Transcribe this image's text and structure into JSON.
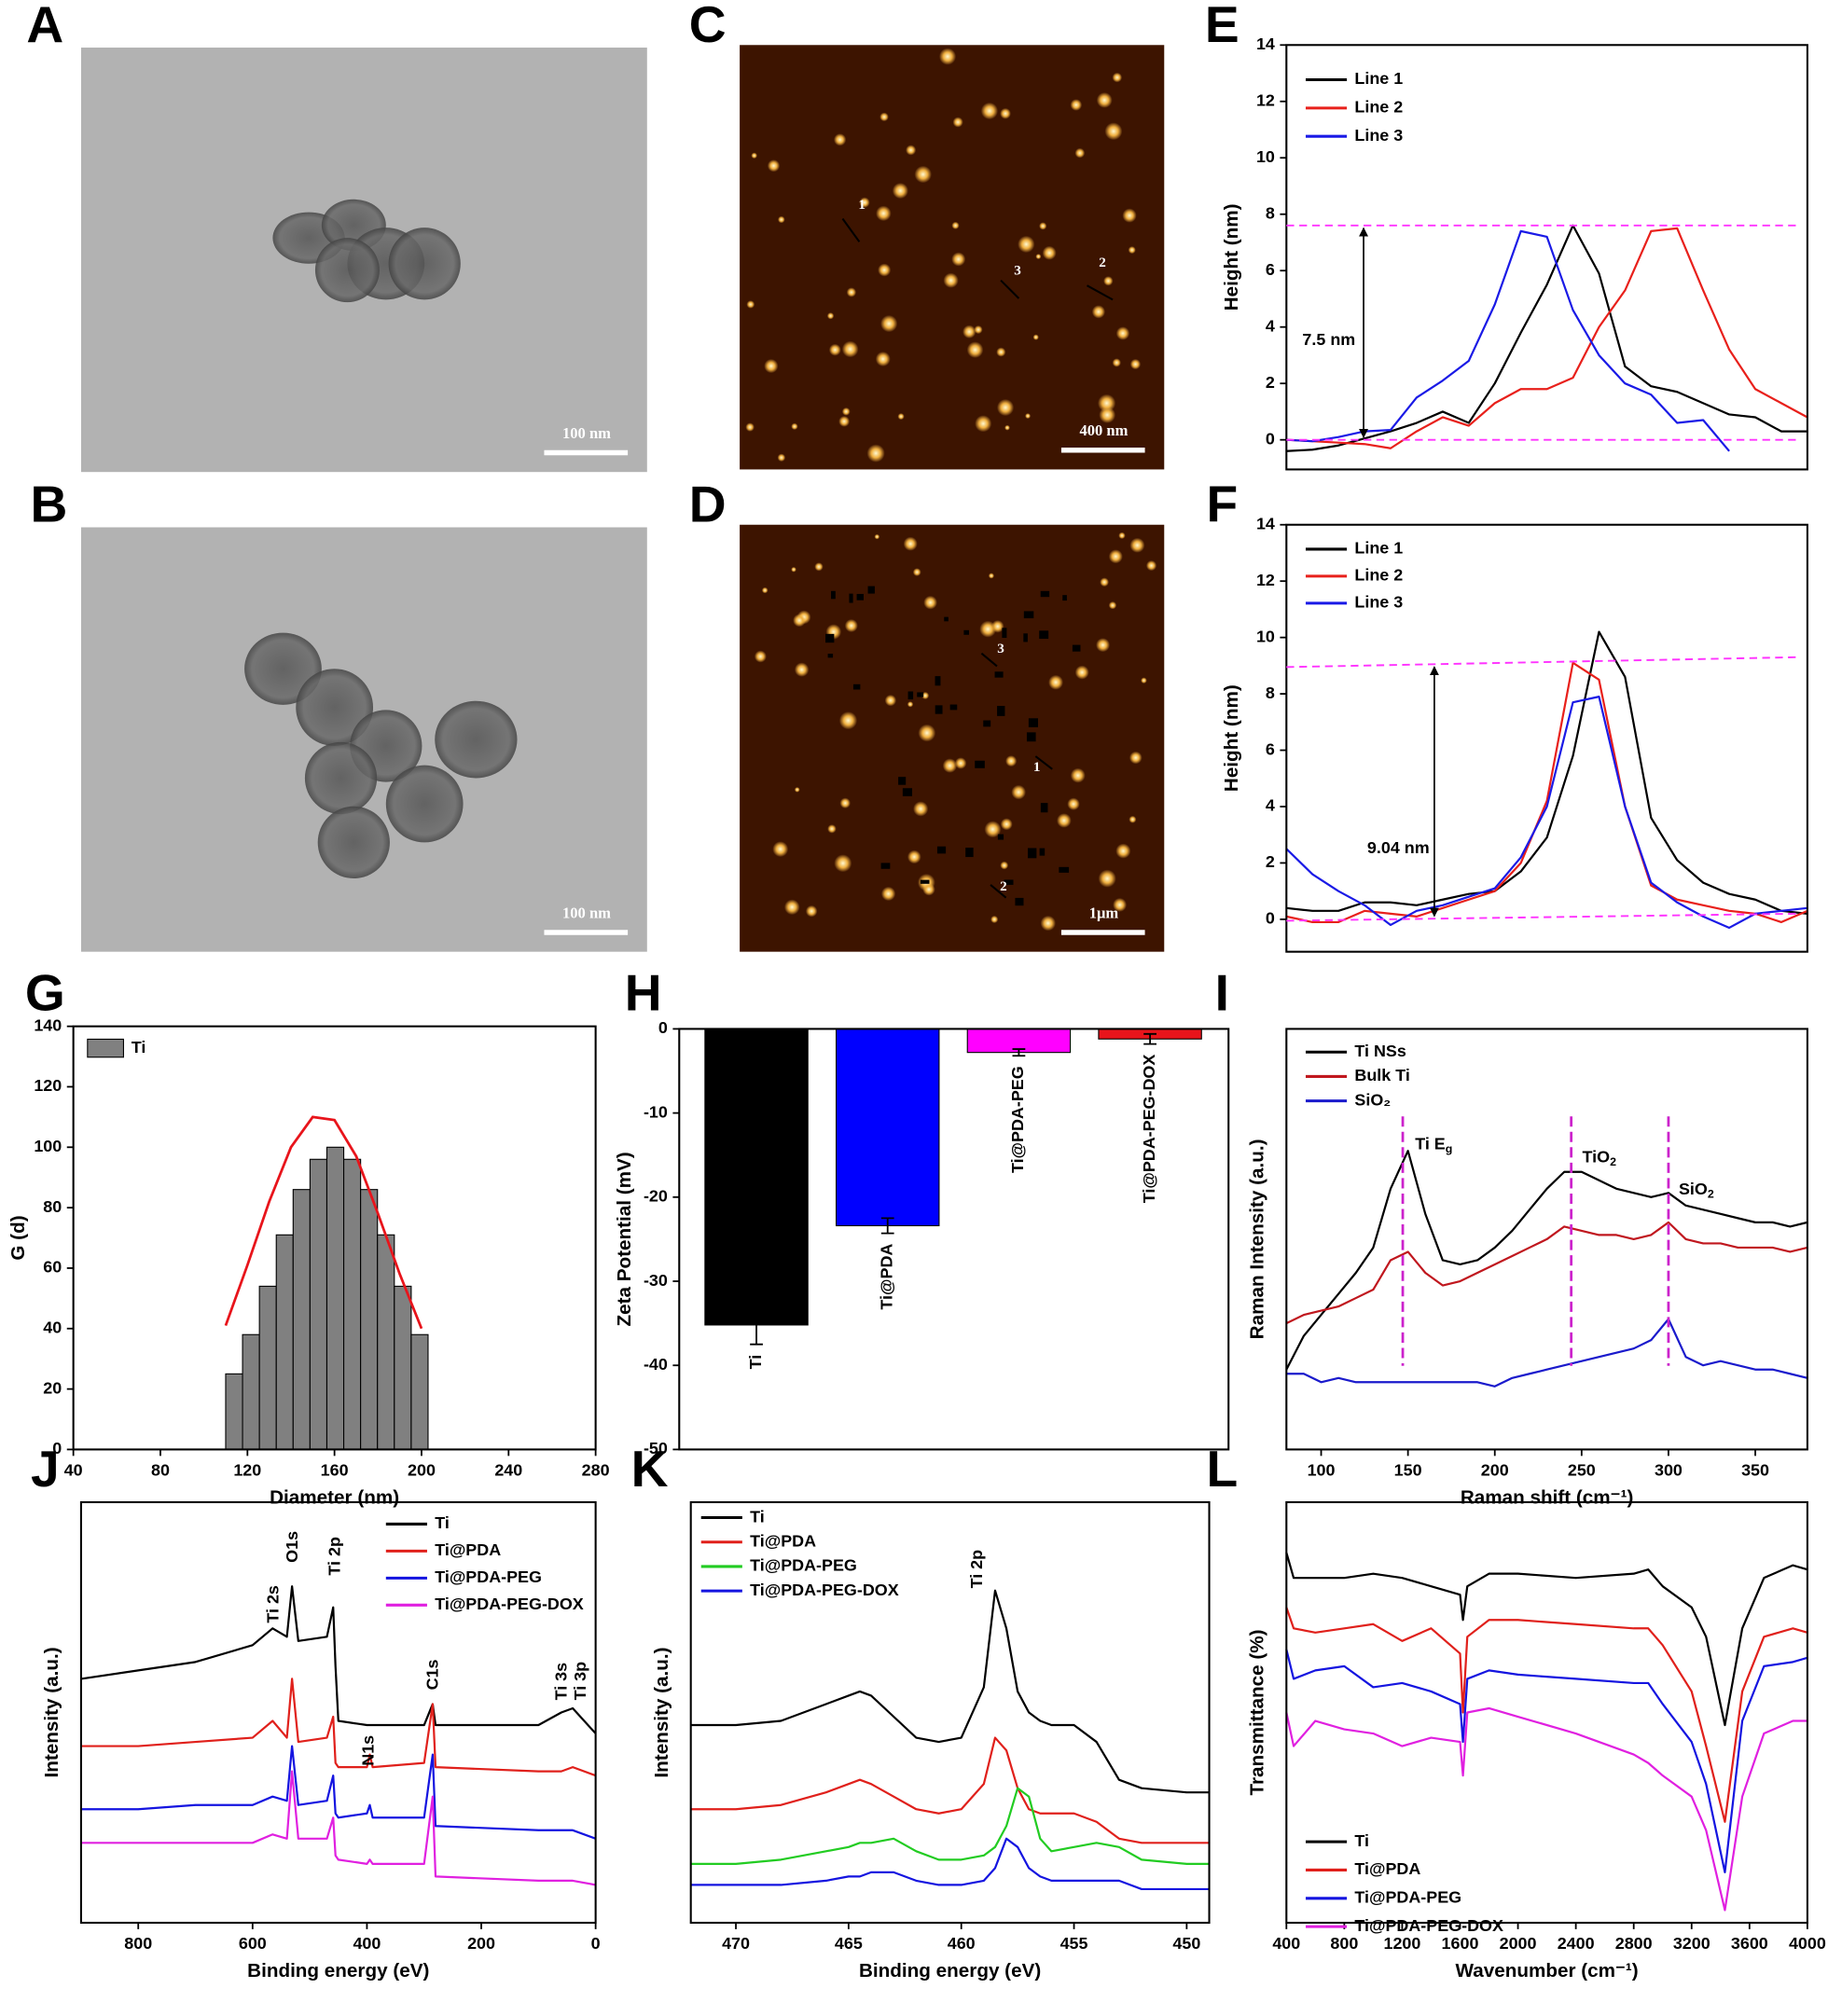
{
  "images": [
    {
      "panel": "A",
      "scale_bar": "100 nm"
    },
    {
      "panel": "B",
      "scale_bar": "100 nm"
    },
    {
      "panel": "C",
      "scale_bar": "400 nm",
      "markers": [
        "1",
        "3",
        "2"
      ]
    },
    {
      "panel": "D",
      "scale_bar": "1μm",
      "markers": [
        "3",
        "1",
        "2"
      ]
    }
  ],
  "chart_data": [
    {
      "panel": "E",
      "type": "line",
      "y_label": "Height (nm)",
      "xlim": [
        0,
        20
      ],
      "ylim": [
        -1.05,
        14
      ],
      "yticks": [
        0,
        2,
        4,
        6,
        8,
        10,
        12,
        14
      ],
      "x": [
        0,
        1,
        2,
        3,
        4,
        5,
        6,
        7,
        8,
        9,
        10,
        11,
        12,
        13,
        14,
        15,
        16,
        17,
        18,
        19,
        20
      ],
      "series": [
        {
          "name": "Line 1",
          "color": "#000000",
          "values": [
            -0.4,
            -0.35,
            -0.2,
            0.05,
            0.3,
            0.6,
            1.0,
            0.6,
            2.0,
            3.8,
            5.5,
            7.6,
            5.9,
            2.6,
            1.9,
            1.7,
            1.3,
            0.9,
            0.8,
            0.3,
            0.3
          ]
        },
        {
          "name": "Line 2",
          "color": "#e8201b",
          "values": [
            0,
            -0.05,
            -0.1,
            -0.15,
            -0.3,
            0.3,
            0.8,
            0.5,
            1.3,
            1.8,
            1.8,
            2.2,
            4.0,
            5.3,
            7.4,
            7.5,
            5.3,
            3.2,
            1.8,
            1.3,
            0.8
          ]
        },
        {
          "name": "Line 3",
          "color": "#1a1ae6",
          "values": [
            0,
            -0.05,
            0.1,
            0.3,
            0.35,
            1.5,
            2.1,
            2.8,
            4.8,
            7.4,
            7.2,
            4.6,
            3.0,
            2.0,
            1.6,
            0.6,
            0.7,
            -0.4,
            null,
            null,
            null
          ]
        }
      ],
      "ref_lines": [
        [
          7.6,
          7.6
        ],
        [
          0,
          0
        ]
      ],
      "ref_color": "#ff33ff",
      "annotations": [
        "7.5 nm"
      ]
    },
    {
      "panel": "F",
      "type": "line",
      "y_label": "Height (nm)",
      "xlim": [
        0,
        20
      ],
      "ylim": [
        -1.15,
        14
      ],
      "yticks": [
        0,
        2,
        4,
        6,
        8,
        10,
        12,
        14
      ],
      "x": [
        0,
        1,
        2,
        3,
        4,
        5,
        6,
        7,
        8,
        9,
        10,
        11,
        12,
        13,
        14,
        15,
        16,
        17,
        18,
        19,
        20
      ],
      "series": [
        {
          "name": "Line 1",
          "color": "#000000",
          "values": [
            0.4,
            0.3,
            0.3,
            0.6,
            0.6,
            0.5,
            0.7,
            0.9,
            1.0,
            1.7,
            2.9,
            5.8,
            10.2,
            8.6,
            3.6,
            2.1,
            1.3,
            0.9,
            0.7,
            0.3,
            0.2
          ]
        },
        {
          "name": "Line 2",
          "color": "#e8201b",
          "values": [
            0.1,
            -0.1,
            -0.1,
            0.3,
            0.2,
            0.1,
            0.4,
            0.7,
            1.0,
            2.0,
            4.2,
            9.1,
            8.5,
            4.0,
            1.2,
            0.7,
            0.5,
            0.3,
            0.2,
            -0.1,
            0.3
          ]
        },
        {
          "name": "Line 3",
          "color": "#1a1ae6",
          "values": [
            2.5,
            1.6,
            1.0,
            0.5,
            -0.2,
            0.3,
            0.5,
            0.8,
            1.1,
            2.2,
            4.0,
            7.7,
            7.9,
            4.0,
            1.3,
            0.6,
            0.1,
            -0.3,
            0.2,
            0.3,
            0.4
          ]
        }
      ],
      "ref_lines": [
        [
          8.95,
          9.3
        ],
        [
          -0.05,
          0.2
        ]
      ],
      "ref_color": "#ff33ff",
      "annotations": [
        "9.04 nm"
      ]
    },
    {
      "panel": "G",
      "type": "histogram",
      "x_label": "Diameter (nm)",
      "y_label": "G (d)",
      "xlim": [
        40,
        280
      ],
      "ylim": [
        0,
        140
      ],
      "xticks": [
        40,
        80,
        120,
        160,
        200,
        240,
        280
      ],
      "yticks": [
        0,
        20,
        40,
        60,
        80,
        100,
        120,
        140
      ],
      "bins": [
        110,
        117.75,
        125.5,
        133.25,
        141,
        148.75,
        156.5,
        164.25,
        172,
        179.75,
        187.5,
        195.25,
        203
      ],
      "series": [
        {
          "name": "Ti",
          "color": "#808080",
          "values": [
            25,
            38,
            54,
            71,
            86,
            96,
            100,
            96,
            86,
            71,
            54,
            38
          ]
        }
      ],
      "fit": {
        "color": "#e8141b",
        "x": [
          110,
          120,
          130,
          140,
          150,
          160,
          170,
          180,
          190,
          200
        ],
        "values": [
          41,
          61,
          82,
          100,
          110,
          109,
          97,
          78,
          58,
          40
        ]
      }
    },
    {
      "panel": "H",
      "type": "bar",
      "y_label": "Zeta Potential (mV)",
      "ylim": [
        -50,
        0
      ],
      "yticks": [
        0,
        -10,
        -20,
        -30,
        -40,
        -50
      ],
      "categories": [
        "Ti",
        "Ti@PDA",
        "Ti@PDA-PEG",
        "Ti@PDA-PEG-DOX"
      ],
      "values": [
        -35.2,
        -23.4,
        -2.8,
        -1.2
      ],
      "errors": [
        2.3,
        0.9,
        0.4,
        0.6
      ],
      "colors": [
        "#000000",
        "#0000ff",
        "#ff00ff",
        "#e8141b"
      ]
    },
    {
      "panel": "I",
      "type": "line",
      "x_label": "Raman shift (cm⁻¹)",
      "y_label": "Raman Intensity (a.u.)",
      "xlim": [
        80,
        380
      ],
      "ylim": [
        0,
        100
      ],
      "xticks": [
        100,
        150,
        200,
        250,
        300,
        350
      ],
      "x": [
        80,
        90,
        100,
        110,
        120,
        130,
        140,
        150,
        160,
        170,
        180,
        190,
        200,
        210,
        220,
        230,
        240,
        250,
        260,
        270,
        280,
        290,
        300,
        310,
        320,
        330,
        340,
        350,
        360,
        370,
        380
      ],
      "series": [
        {
          "name": "Ti NSs",
          "color": "#000000",
          "values": [
            19,
            27,
            32,
            37,
            42,
            48,
            62,
            71,
            56,
            45,
            44,
            45,
            48,
            52,
            57,
            62,
            66,
            66,
            64,
            62,
            61,
            60,
            61,
            58,
            57,
            56,
            55,
            54,
            54,
            53,
            54
          ]
        },
        {
          "name": "Bulk Ti",
          "color": "#c0171e",
          "values": [
            30,
            32,
            33,
            34,
            36,
            38,
            45,
            47,
            42,
            39,
            40,
            42,
            44,
            46,
            48,
            50,
            53,
            52,
            51,
            51,
            50,
            51,
            54,
            50,
            49,
            49,
            48,
            48,
            48,
            47,
            48
          ]
        },
        {
          "name": "SiO₂",
          "color": "#1a1acc",
          "values": [
            18,
            18,
            16,
            17,
            16,
            16,
            16,
            16,
            16,
            16,
            16,
            16,
            15,
            17,
            18,
            19,
            20,
            21,
            22,
            23,
            24,
            26,
            31,
            22,
            20,
            21,
            20,
            19,
            19,
            18,
            17
          ]
        }
      ],
      "vlines": [
        147,
        244,
        300
      ],
      "vline_color": "#cc22cc",
      "annotations": [
        {
          "text": "Ti E",
          "sub": "g"
        },
        {
          "text": "TiO",
          "sub": "2"
        },
        {
          "text": "SiO",
          "sub": "2"
        }
      ]
    },
    {
      "panel": "J",
      "type": "line",
      "x_label": "Binding energy (eV)",
      "y_label": "Intensity (a.u.)",
      "xlim": [
        900,
        0
      ],
      "ylim": [
        0,
        100
      ],
      "xticks": [
        800,
        600,
        400,
        200,
        0
      ],
      "x": [
        900,
        800,
        700,
        600,
        565,
        540,
        531,
        520,
        470,
        459,
        455,
        450,
        400,
        395,
        390,
        300,
        285,
        280,
        100,
        60,
        40,
        0
      ],
      "series": [
        {
          "name": "Ti",
          "color": "#000000",
          "values": [
            58,
            60,
            62,
            66,
            70,
            68,
            80,
            67,
            68,
            75,
            61,
            48,
            47,
            47,
            47,
            47,
            52,
            47,
            47,
            50,
            51,
            45
          ]
        },
        {
          "name": "Ti@PDA",
          "color": "#e0201b",
          "values": [
            42,
            42,
            43,
            44,
            48,
            44,
            58,
            43,
            44,
            49,
            38,
            37,
            37,
            40,
            37,
            38,
            52,
            37,
            36,
            36,
            37,
            35
          ]
        },
        {
          "name": "Ti@PDA-PEG",
          "color": "#1414e0",
          "values": [
            27,
            27,
            28,
            28,
            30,
            29,
            42,
            28,
            29,
            35,
            26,
            25,
            26,
            28,
            25,
            25,
            40,
            23,
            22,
            22,
            22,
            20
          ]
        },
        {
          "name": "Ti@PDA-PEG-DOX",
          "color": "#e020e0",
          "values": [
            19,
            19,
            19,
            19,
            21,
            20,
            36,
            20,
            20,
            25,
            16,
            15,
            14,
            15,
            14,
            14,
            30,
            11,
            10,
            10,
            10,
            9
          ]
        }
      ],
      "annotations": [
        "Ti 2s",
        "O1s",
        "Ti 2p",
        "N1s",
        "C1s",
        "Ti 3s",
        "Ti 3p"
      ]
    },
    {
      "panel": "K",
      "type": "line",
      "x_label": "Binding energy (eV)",
      "y_label": "Intensity (a.u.)",
      "xlim": [
        472,
        449
      ],
      "ylim": [
        0,
        100
      ],
      "xticks": [
        470,
        465,
        460,
        455,
        450
      ],
      "x": [
        472,
        470,
        468,
        466,
        465,
        464.5,
        464,
        463,
        462,
        461,
        460,
        459,
        458.5,
        458,
        457.5,
        457,
        456.5,
        456,
        455,
        454,
        453,
        452,
        450,
        449
      ],
      "series": [
        {
          "name": "Ti",
          "color": "#000000",
          "values": [
            47,
            47,
            48,
            52,
            54,
            55,
            54,
            49,
            44,
            43,
            44,
            56,
            79,
            70,
            55,
            50,
            48,
            47,
            47,
            43,
            34,
            32,
            31,
            31
          ]
        },
        {
          "name": "Ti@PDA",
          "color": "#e0201b",
          "values": [
            27,
            27,
            28,
            31,
            33,
            34,
            33,
            30,
            27,
            26,
            27,
            33,
            44,
            41,
            32,
            27,
            26,
            26,
            26,
            24,
            20,
            19,
            19,
            19
          ]
        },
        {
          "name": "Ti@PDA-PEG",
          "color": "#22cc22",
          "values": [
            14,
            14,
            15,
            17,
            18,
            19,
            19,
            20,
            17,
            15,
            15,
            16,
            18,
            23,
            32,
            30,
            20,
            17,
            18,
            19,
            18,
            15,
            14,
            14
          ]
        },
        {
          "name": "Ti@PDA-PEG-DOX",
          "color": "#1414e0",
          "values": [
            9,
            9,
            9,
            10,
            11,
            11,
            12,
            12,
            10,
            9,
            9,
            10,
            13,
            20,
            18,
            13,
            11,
            10,
            10,
            10,
            10,
            8,
            8,
            8
          ]
        }
      ],
      "annotations": [
        "Ti 2p"
      ]
    },
    {
      "panel": "L",
      "type": "line",
      "x_label": "Wavenumber (cm⁻¹)",
      "y_label": "Transmittance (%)",
      "xlim": [
        400,
        4000
      ],
      "ylim": [
        0,
        100
      ],
      "xticks": [
        400,
        800,
        1200,
        1600,
        2000,
        2400,
        2800,
        3200,
        3600,
        4000
      ],
      "x": [
        400,
        450,
        600,
        800,
        1000,
        1200,
        1400,
        1600,
        1620,
        1650,
        1800,
        2000,
        2400,
        2800,
        2900,
        3000,
        3200,
        3300,
        3430,
        3550,
        3700,
        3900,
        4000
      ],
      "series": [
        {
          "name": "Ti",
          "color": "#000000",
          "values": [
            88,
            82,
            82,
            82,
            83,
            82,
            80,
            78,
            72,
            80,
            83,
            83,
            82,
            83,
            84,
            80,
            75,
            68,
            47,
            70,
            82,
            85,
            84
          ]
        },
        {
          "name": "Ti@PDA",
          "color": "#e0201b",
          "values": [
            75,
            70,
            69,
            70,
            71,
            67,
            70,
            64,
            50,
            68,
            72,
            72,
            71,
            70,
            70,
            66,
            55,
            42,
            24,
            55,
            68,
            70,
            69
          ]
        },
        {
          "name": "Ti@PDA-PEG",
          "color": "#1414e0",
          "values": [
            65,
            58,
            60,
            61,
            56,
            57,
            55,
            52,
            43,
            58,
            60,
            59,
            58,
            57,
            57,
            52,
            43,
            33,
            12,
            48,
            61,
            62,
            63
          ]
        },
        {
          "name": "Ti@PDA-PEG-DOX",
          "color": "#e020e0",
          "values": [
            50,
            42,
            48,
            46,
            45,
            42,
            44,
            43,
            35,
            50,
            51,
            49,
            45,
            40,
            38,
            35,
            30,
            22,
            3,
            30,
            45,
            48,
            48
          ]
        }
      ]
    }
  ]
}
